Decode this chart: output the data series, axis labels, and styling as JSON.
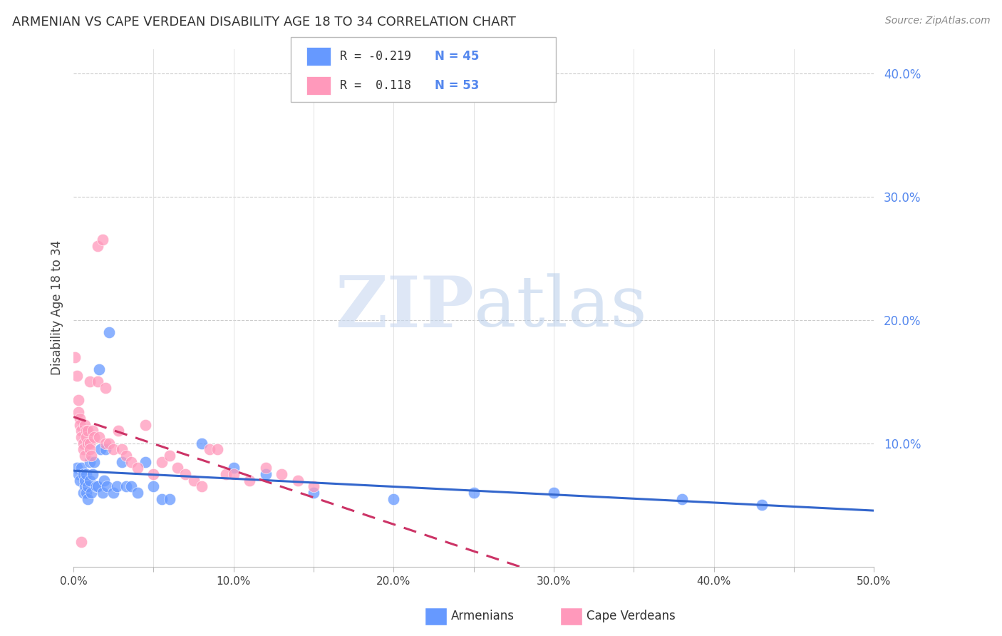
{
  "title": "ARMENIAN VS CAPE VERDEAN DISABILITY AGE 18 TO 34 CORRELATION CHART",
  "source": "Source: ZipAtlas.com",
  "ylabel": "Disability Age 18 to 34",
  "xlabel_armenians": "Armenians",
  "xlabel_capeverdeans": "Cape Verdeans",
  "xlim": [
    0.0,
    0.5
  ],
  "ylim": [
    0.0,
    0.42
  ],
  "xticks": [
    0.0,
    0.1,
    0.2,
    0.3,
    0.4,
    0.5
  ],
  "yticks_right": [
    0.1,
    0.2,
    0.3,
    0.4
  ],
  "ytick_labels_right": [
    "10.0%",
    "20.0%",
    "30.0%",
    "40.0%"
  ],
  "xtick_labels": [
    "0.0%",
    "",
    "10.0%",
    "",
    "20.0%",
    "",
    "30.0%",
    "",
    "40.0%",
    "",
    "50.0%"
  ],
  "xtick_positions": [
    0.0,
    0.05,
    0.1,
    0.15,
    0.2,
    0.25,
    0.3,
    0.35,
    0.4,
    0.45,
    0.5
  ],
  "armenian_color": "#6699ff",
  "capeverdean_color": "#ff99bb",
  "armenian_line_color": "#3366cc",
  "capeverdean_line_color": "#cc3366",
  "legend_R_armenian": "R = -0.219",
  "legend_N_armenian": "N = 45",
  "legend_R_capeverdean": "R =   0.118",
  "legend_N_capeverdean": "N = 53",
  "watermark_zip": "ZIP",
  "watermark_atlas": "atlas",
  "armenian_x": [
    0.002,
    0.003,
    0.004,
    0.005,
    0.006,
    0.006,
    0.007,
    0.007,
    0.008,
    0.008,
    0.009,
    0.009,
    0.01,
    0.01,
    0.011,
    0.012,
    0.013,
    0.014,
    0.015,
    0.016,
    0.017,
    0.018,
    0.019,
    0.02,
    0.021,
    0.022,
    0.025,
    0.027,
    0.03,
    0.033,
    0.036,
    0.04,
    0.045,
    0.05,
    0.055,
    0.06,
    0.08,
    0.1,
    0.12,
    0.15,
    0.2,
    0.25,
    0.3,
    0.38,
    0.43
  ],
  "armenian_y": [
    0.08,
    0.075,
    0.07,
    0.08,
    0.075,
    0.06,
    0.065,
    0.07,
    0.06,
    0.075,
    0.065,
    0.055,
    0.085,
    0.07,
    0.06,
    0.075,
    0.085,
    0.065,
    0.065,
    0.16,
    0.095,
    0.06,
    0.07,
    0.095,
    0.065,
    0.19,
    0.06,
    0.065,
    0.085,
    0.065,
    0.065,
    0.06,
    0.085,
    0.065,
    0.055,
    0.055,
    0.1,
    0.08,
    0.075,
    0.06,
    0.055,
    0.06,
    0.06,
    0.055,
    0.05
  ],
  "capeverdean_x": [
    0.001,
    0.002,
    0.003,
    0.003,
    0.004,
    0.004,
    0.005,
    0.005,
    0.006,
    0.006,
    0.007,
    0.007,
    0.008,
    0.008,
    0.009,
    0.009,
    0.01,
    0.01,
    0.011,
    0.012,
    0.013,
    0.015,
    0.016,
    0.018,
    0.02,
    0.022,
    0.025,
    0.028,
    0.03,
    0.033,
    0.036,
    0.04,
    0.045,
    0.05,
    0.055,
    0.06,
    0.065,
    0.07,
    0.075,
    0.08,
    0.085,
    0.09,
    0.095,
    0.1,
    0.11,
    0.12,
    0.13,
    0.14,
    0.15,
    0.005,
    0.01,
    0.015,
    0.02
  ],
  "capeverdean_y": [
    0.17,
    0.155,
    0.135,
    0.125,
    0.12,
    0.115,
    0.11,
    0.105,
    0.1,
    0.095,
    0.09,
    0.115,
    0.11,
    0.105,
    0.1,
    0.11,
    0.1,
    0.095,
    0.09,
    0.11,
    0.105,
    0.26,
    0.105,
    0.265,
    0.1,
    0.1,
    0.095,
    0.11,
    0.095,
    0.09,
    0.085,
    0.08,
    0.115,
    0.075,
    0.085,
    0.09,
    0.08,
    0.075,
    0.07,
    0.065,
    0.095,
    0.095,
    0.075,
    0.075,
    0.07,
    0.08,
    0.075,
    0.07,
    0.065,
    0.02,
    0.15,
    0.15,
    0.145
  ]
}
